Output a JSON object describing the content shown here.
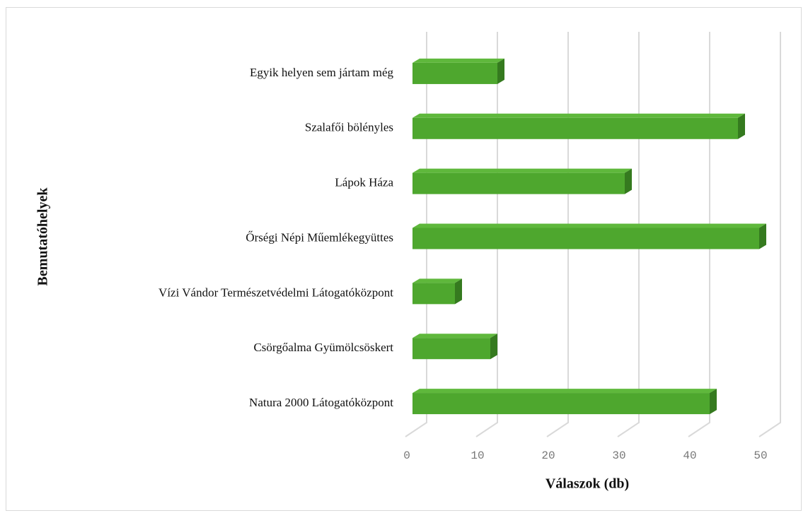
{
  "chart_data": {
    "type": "bar3d_horizontal",
    "categories": [
      "Egyik helyen sem jártam még",
      "Szalafői bölényles",
      "Lápok Háza",
      "Őrségi Népi Műemlékegyüttes",
      "Vízi Vándor Természetvédelmi Látogatóközpont",
      "Csörgőalma Gyümölcsöskert",
      "Natura 2000 Látogatóközpont"
    ],
    "values": [
      12,
      46,
      30,
      49,
      6,
      11,
      42
    ],
    "color": "#4ea72e",
    "xlim": [
      0,
      50
    ],
    "xticks": [
      0,
      10,
      20,
      30,
      40,
      50
    ],
    "x_label": "Válaszok (db)",
    "y_label": "Bemutatóhelyek",
    "grid": true
  }
}
